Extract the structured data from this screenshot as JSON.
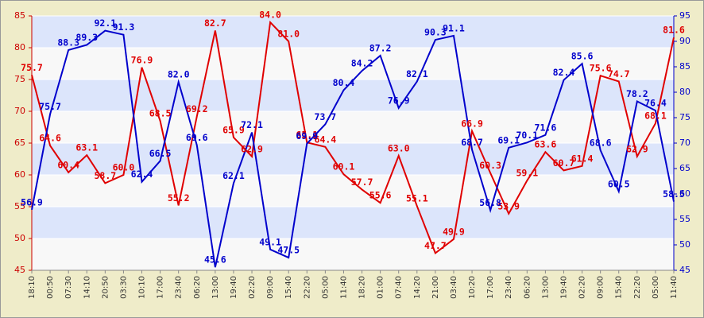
{
  "chart_data": {
    "type": "line",
    "categories": [
      "18:10",
      "00:50",
      "07:30",
      "14:10",
      "20:50",
      "03:30",
      "10:10",
      "17:00",
      "23:40",
      "06:20",
      "13:00",
      "19:40",
      "02:20",
      "09:00",
      "15:40",
      "22:20",
      "05:00",
      "11:40",
      "18:20",
      "01:00",
      "07:40",
      "14:20",
      "21:00",
      "03:40",
      "10:20",
      "17:00",
      "23:40",
      "06:20",
      "13:00",
      "19:40",
      "02:20",
      "09:00",
      "15:40",
      "22:20",
      "05:00",
      "11:40"
    ],
    "series": [
      {
        "color": "#e00000",
        "axis": "y",
        "values": [
          75.7,
          64.6,
          60.4,
          63.1,
          58.7,
          60.0,
          76.9,
          68.5,
          55.2,
          69.2,
          82.7,
          65.9,
          62.9,
          84.0,
          81.0,
          65.1,
          64.4,
          60.1,
          57.7,
          55.6,
          63.0,
          55.1,
          47.7,
          49.9,
          66.9,
          60.3,
          53.9,
          59.1,
          63.6,
          60.7,
          61.4,
          75.6,
          74.7,
          62.9,
          68.1,
          81.6
        ],
        "value_labels": [
          "75.7",
          "64.6",
          "60.4",
          "63.1",
          "58.7",
          "60.0",
          "76.9",
          "68.5",
          "55.2",
          "69.2",
          "82.7",
          "65.9",
          "62.9",
          "84.0",
          "81.0",
          "65.1",
          "64.4",
          "60.1",
          "57.7",
          "55.6",
          "63.0",
          "55.1",
          "47.7",
          "49.9",
          "66.9",
          "60.3",
          "53.9",
          "59.1",
          "63.6",
          "60.7",
          "61.4",
          "75.6",
          "74.7",
          "62.9",
          "68.1",
          "81.6"
        ]
      },
      {
        "color": "#0000cc",
        "axis": "y2",
        "values": [
          56.9,
          75.7,
          88.3,
          89.3,
          92.1,
          91.3,
          62.4,
          66.5,
          82.0,
          69.6,
          45.6,
          62.1,
          72.1,
          49.1,
          47.5,
          69.9,
          73.7,
          80.4,
          84.2,
          87.2,
          76.9,
          82.1,
          90.3,
          91.1,
          68.7,
          56.8,
          69.1,
          70.1,
          71.6,
          82.4,
          85.6,
          68.6,
          60.5,
          78.2,
          76.4,
          58.5
        ],
        "value_labels": [
          "56.9",
          "75.7",
          "88.3",
          "89.3",
          "92.1",
          "91.3",
          "62.4",
          "66.5",
          "82.0",
          "69.6",
          "45.6",
          "62.1",
          "72.1",
          "49.1",
          "47.5",
          "69.9",
          "73.7",
          "80.4",
          "84.2",
          "87.2",
          "76.9",
          "82.1",
          "90.3",
          "91.1",
          "68.7",
          "56.8",
          "69.1",
          "70.1",
          "71.6",
          "82.4",
          "85.6",
          "68.6",
          "60.5",
          "78.2",
          "76.4",
          "58.5"
        ]
      }
    ],
    "ylim": [
      45,
      85
    ],
    "yticks": [
      45,
      50,
      55,
      60,
      65,
      70,
      75,
      80,
      85
    ],
    "y2lim": [
      45,
      95
    ],
    "y2ticks": [
      45,
      50,
      55,
      60,
      65,
      70,
      75,
      80,
      85,
      90,
      95
    ],
    "grid": true
  }
}
